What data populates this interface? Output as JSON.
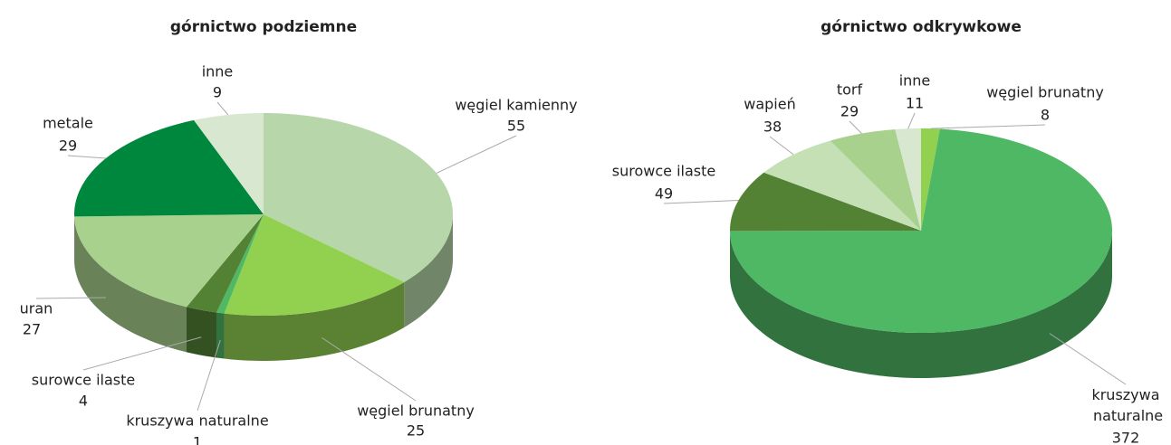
{
  "chart_data": [
    {
      "type": "pie3d",
      "title": "górnictwo podziemne",
      "categories": [
        "węgiel kamienny",
        "węgiel brunatny",
        "kruszywa naturalne",
        "surowce ilaste",
        "uran",
        "metale",
        "inne"
      ],
      "values": [
        55,
        25,
        1,
        4,
        27,
        29,
        9
      ],
      "colors": [
        "#b7d6aa",
        "#92d050",
        "#4fb865",
        "#548235",
        "#a9d18e",
        "#00873e",
        "#d8e8d0"
      ]
    },
    {
      "type": "pie3d",
      "title": "górnictwo odkrywkowe",
      "categories": [
        "węgiel brunatny",
        "kruszywa naturalne",
        "surowce ilaste",
        "wapień",
        "torf",
        "inne"
      ],
      "values": [
        8,
        372,
        49,
        38,
        29,
        11
      ],
      "colors": [
        "#92d050",
        "#4fb865",
        "#548235",
        "#c5e0b4",
        "#a9d18e",
        "#d8e8d0"
      ]
    }
  ]
}
